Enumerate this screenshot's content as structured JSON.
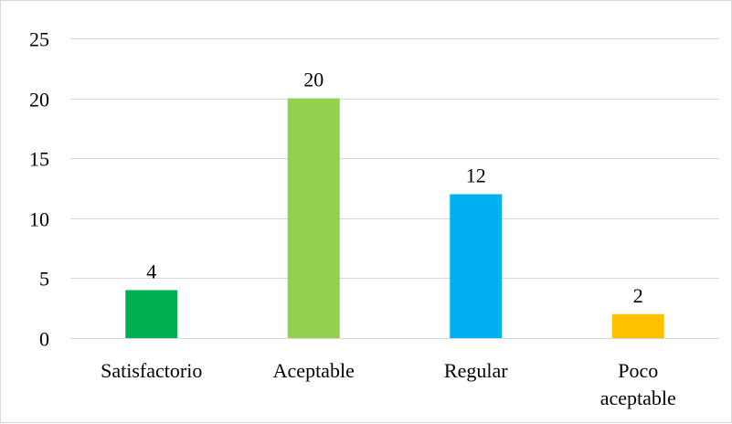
{
  "chart_data": {
    "type": "bar",
    "title": "",
    "xlabel": "",
    "ylabel": "",
    "ylim": [
      0,
      25
    ],
    "yticks": [
      0,
      5,
      10,
      15,
      20,
      25
    ],
    "grid": true,
    "legend": "none",
    "categories": [
      [
        "Satisfactorio"
      ],
      [
        "Aceptable"
      ],
      [
        "Regular"
      ],
      [
        "Poco",
        "aceptable"
      ]
    ],
    "values": [
      4,
      20,
      12,
      2
    ],
    "colors": [
      "#00b050",
      "#92d050",
      "#00b0f0",
      "#ffc000"
    ],
    "gridline_color": "#d9d9d9",
    "axis_color": "#d9d9d9"
  }
}
